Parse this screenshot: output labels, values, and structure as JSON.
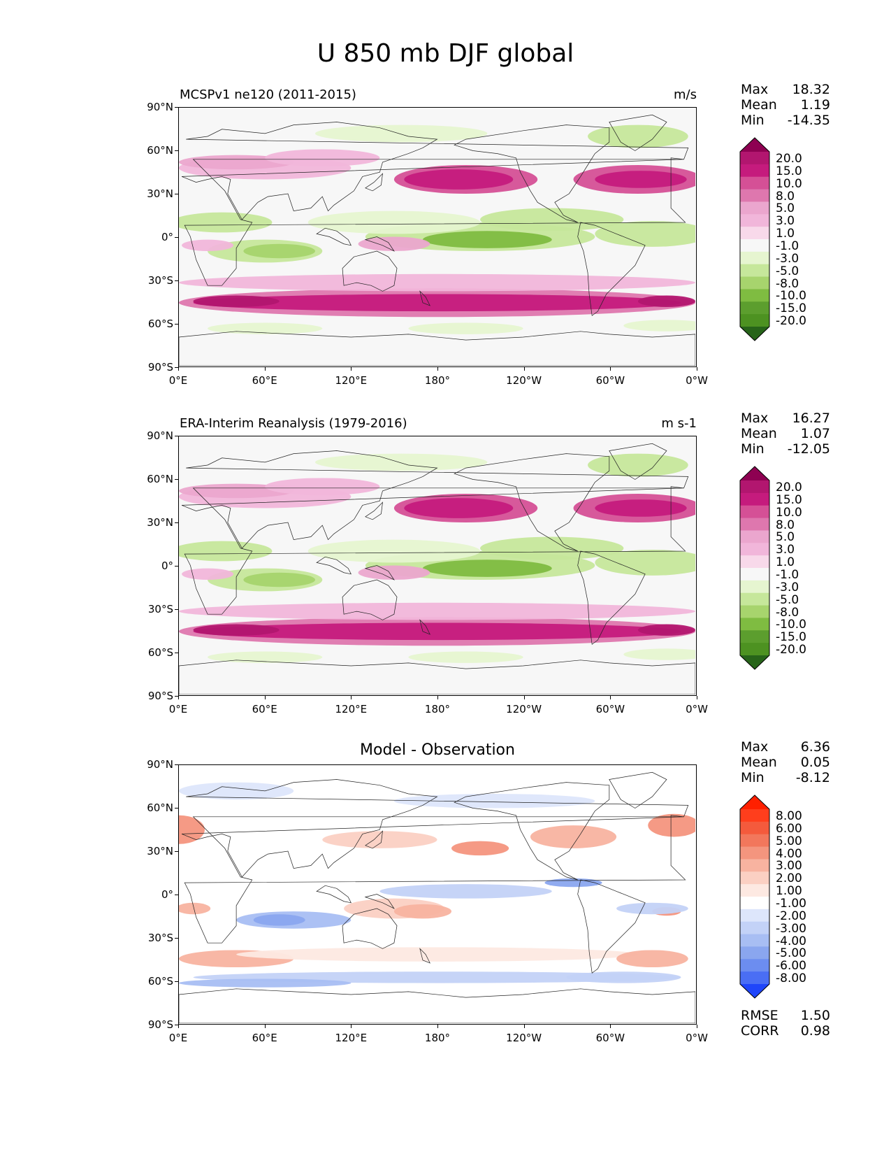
{
  "title": "U 850 mb DJF global",
  "axes": {
    "lat_labels": [
      "90°N",
      "60°N",
      "30°N",
      "0°",
      "30°S",
      "60°S",
      "90°S"
    ],
    "lon_labels": [
      "0°E",
      "60°E",
      "120°E",
      "180°",
      "120°W",
      "60°W",
      "0°W"
    ]
  },
  "panels": [
    {
      "title_left": "MCSPv1 ne120 (2011-2015)",
      "title_center": "",
      "units": "m/s",
      "stats": {
        "max_label": "Max",
        "max": "18.32",
        "mean_label": "Mean",
        "mean": "1.19",
        "min_label": "Min",
        "min": "-14.35"
      },
      "colorbar": {
        "levels": [
          "20.0",
          "15.0",
          "10.0",
          "8.0",
          "5.0",
          "3.0",
          "1.0",
          "-1.0",
          "-3.0",
          "-5.0",
          "-8.0",
          "-10.0",
          "-15.0",
          "-20.0"
        ],
        "colors": [
          "#8e0152",
          "#b2166f",
          "#c51b7d",
          "#d55096",
          "#de77ae",
          "#eba6ce",
          "#f1b6da",
          "#f8d9ea",
          "#f7f7f7",
          "#e6f5d0",
          "#c6e79b",
          "#a7d46d",
          "#7fbc41",
          "#5c9e2e",
          "#4d9221",
          "#276419"
        ]
      },
      "extra_stats": null
    },
    {
      "title_left": "ERA-Interim Reanalysis (1979-2016)",
      "title_center": "",
      "units": "m s-1",
      "stats": {
        "max_label": "Max",
        "max": "16.27",
        "mean_label": "Mean",
        "mean": "1.07",
        "min_label": "Min",
        "min": "-12.05"
      },
      "colorbar": {
        "levels": [
          "20.0",
          "15.0",
          "10.0",
          "8.0",
          "5.0",
          "3.0",
          "1.0",
          "-1.0",
          "-3.0",
          "-5.0",
          "-8.0",
          "-10.0",
          "-15.0",
          "-20.0"
        ],
        "colors": [
          "#8e0152",
          "#b2166f",
          "#c51b7d",
          "#d55096",
          "#de77ae",
          "#eba6ce",
          "#f1b6da",
          "#f8d9ea",
          "#f7f7f7",
          "#e6f5d0",
          "#c6e79b",
          "#a7d46d",
          "#7fbc41",
          "#5c9e2e",
          "#4d9221",
          "#276419"
        ]
      },
      "extra_stats": null
    },
    {
      "title_left": "",
      "title_center": "Model - Observation",
      "units": "",
      "stats": {
        "max_label": "Max",
        "max": "6.36",
        "mean_label": "Mean",
        "mean": "0.05",
        "min_label": "Min",
        "min": "-8.12"
      },
      "colorbar": {
        "levels": [
          "8.00",
          "6.00",
          "5.00",
          "4.00",
          "3.00",
          "2.00",
          "1.00",
          "-1.00",
          "-2.00",
          "-3.00",
          "-4.00",
          "-5.00",
          "-6.00",
          "-8.00"
        ],
        "colors": [
          "#ff2000",
          "#ff3e1c",
          "#f45a3c",
          "#f2775c",
          "#f4957e",
          "#f8b3a0",
          "#fbd0c3",
          "#fde9e2",
          "#ffffff",
          "#dde6fb",
          "#c3d2f7",
          "#a8bef3",
          "#8aa6ef",
          "#6c8df0",
          "#4a6ef4",
          "#1f45fa"
        ]
      },
      "extra_stats": {
        "rmse_label": "RMSE",
        "rmse": "1.50",
        "corr_label": "CORR",
        "corr": "0.98"
      }
    }
  ]
}
